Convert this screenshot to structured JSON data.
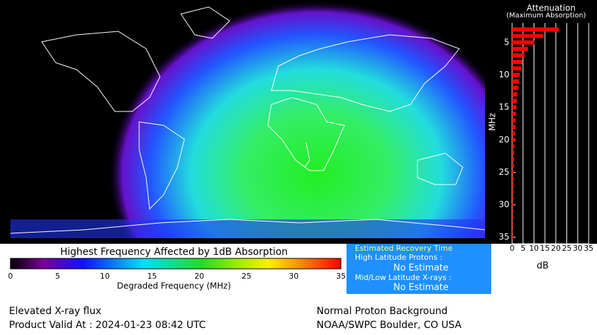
{
  "map": {
    "colorbar": {
      "title": "Highest Frequency Affected by 1dB Absorption",
      "ticks": [
        0,
        5,
        10,
        15,
        20,
        25,
        30,
        35
      ],
      "xlim": [
        0,
        35
      ],
      "label": "Degraded Frequency (MHz)"
    }
  },
  "chart_data": {
    "type": "bar",
    "title": "Attenuation",
    "subtitle": "(Maximum Absorption)",
    "y": [
      3,
      4,
      5,
      6,
      7,
      8,
      9,
      10,
      11,
      12,
      13,
      14,
      15,
      16,
      17,
      18,
      19,
      20,
      21,
      22,
      23,
      24,
      25,
      26,
      27,
      28,
      29,
      30,
      31,
      32,
      33,
      34,
      35
    ],
    "values": [
      21.3,
      14.3,
      10.2,
      7.3,
      5.7,
      4.8,
      4.1,
      3.5,
      3.2,
      2.9,
      2.5,
      2.2,
      2,
      1.8,
      1.6,
      1.5,
      1.3,
      1.2,
      1.1,
      1,
      0.95,
      0.9,
      0.8,
      0.75,
      0.7,
      0.65,
      0.6,
      0.55,
      0.5,
      0.5,
      0.45,
      0.4,
      0.4
    ],
    "color": "#ff0000",
    "xlabel": "dB",
    "ylabel": "MHz",
    "xlim": [
      0,
      35
    ],
    "xticks": [
      0,
      5,
      10,
      15,
      20,
      25,
      30,
      35
    ],
    "ylim": [
      2,
      36
    ],
    "yticks": [
      5,
      10,
      15,
      20,
      25,
      30,
      35
    ],
    "grid": true
  },
  "recovery": {
    "title": "Estimated Recovery Time",
    "high_label": "High Latitude Protons :",
    "high_value": "No Estimate",
    "low_label": "Mid/Low Latitude X-rays :",
    "low_value": "No Estimate"
  },
  "footer": {
    "status": "Elevated X-ray flux",
    "valid": "Product Valid At : 2024-01-23 08:42 UTC",
    "proton": "Normal Proton Background",
    "source": "NOAA/SWPC Boulder, CO USA"
  }
}
